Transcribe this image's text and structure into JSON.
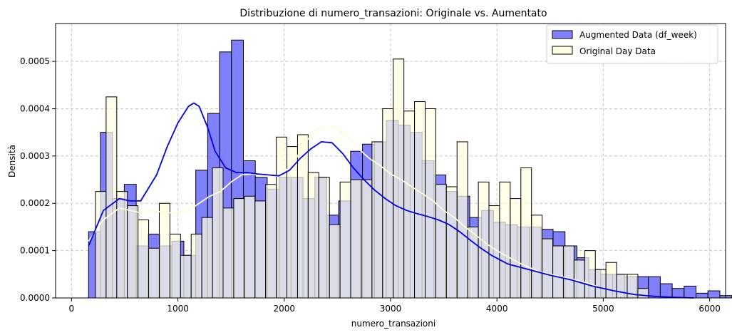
{
  "chart_data": {
    "type": "histogram",
    "title": "Distribuzione di numero_transazioni: Originale vs. Aumentato",
    "xlabel": "numero_transazioni",
    "ylabel": "Densità",
    "xlim": [
      -150,
      6150
    ],
    "ylim": [
      0,
      0.00058
    ],
    "xticks": [
      0,
      1000,
      2000,
      3000,
      4000,
      5000,
      6000
    ],
    "yticks": [
      0.0,
      0.0001,
      0.0002,
      0.0003,
      0.0004,
      0.0005
    ],
    "ytick_labels": [
      "0.0000",
      "0.0001",
      "0.0002",
      "0.0003",
      "0.0004",
      "0.0005"
    ],
    "grid": true,
    "legend_position": "top-right",
    "colors": {
      "augmented_fill": "#8080ff",
      "augmented_line": "#0000e6",
      "original_fill": "#fefee0",
      "original_line": "#fdfdd6",
      "overlap_fill": "#d4d4e8",
      "edge": "#000000",
      "grid": "#c8c8c8"
    },
    "series": [
      {
        "name": "Augmented Data (df_week)",
        "bin_start": 160,
        "bin_width": 112,
        "values": [
          0.00014,
          0.00035,
          0.00021,
          0.00024,
          0.00011,
          0.000135,
          0.00011,
          0.00012,
          9e-05,
          0.00027,
          0.00039,
          0.00052,
          0.000545,
          0.00029,
          0.000255,
          0.00023,
          0.000255,
          0.000255,
          0.00021,
          0.000255,
          0.000175,
          0.000205,
          0.00031,
          0.000325,
          0.00033,
          0.000375,
          0.000365,
          0.00035,
          0.00029,
          0.00026,
          0.000225,
          0.000215,
          0.00017,
          0.000185,
          0.00016,
          0.000155,
          0.00015,
          0.00015,
          0.000145,
          0.00014,
          0.00011,
          8.5e-05,
          6e-05,
          5e-05,
          5e-05,
          4.5e-05,
          4.5e-05,
          4.5e-05,
          3e-05,
          2e-05,
          2.5e-05,
          1e-05,
          1.5e-05,
          5e-06
        ],
        "kde_x": [
          160,
          300,
          450,
          550,
          650,
          800,
          900,
          1000,
          1100,
          1150,
          1200,
          1280,
          1350,
          1450,
          1550,
          1650,
          1750,
          1850,
          1950,
          2050,
          2150,
          2250,
          2350,
          2450,
          2550,
          2650,
          2750,
          2850,
          2950,
          3050,
          3150,
          3250,
          3350,
          3450,
          3550,
          3650,
          3750,
          3850,
          3950,
          4100,
          4300,
          4500,
          4700,
          4900,
          5100,
          5300,
          5500,
          5700,
          5850
        ],
        "kde_y": [
          0.00011,
          0.000185,
          0.00021,
          0.000205,
          0.000205,
          0.00026,
          0.00032,
          0.00037,
          0.000405,
          0.000412,
          0.000405,
          0.00036,
          0.00031,
          0.000275,
          0.000265,
          0.000265,
          0.000262,
          0.00026,
          0.000258,
          0.00027,
          0.000295,
          0.000315,
          0.00033,
          0.000328,
          0.000305,
          0.000275,
          0.00025,
          0.000228,
          0.00021,
          0.000195,
          0.000185,
          0.000178,
          0.000172,
          0.000165,
          0.000155,
          0.00014,
          0.000122,
          0.000105,
          9e-05,
          7.2e-05,
          6e-05,
          4.8e-05,
          3.8e-05,
          2.5e-05,
          1.5e-05,
          7e-06,
          3e-06,
          1e-06,
          0.0
        ]
      },
      {
        "name": "Original Day Data",
        "bin_start": 225,
        "bin_width": 100,
        "values": [
          0.000225,
          0.000425,
          0.000225,
          0.000195,
          0.000165,
          0.000105,
          0.0002,
          0.000135,
          9e-05,
          0.000135,
          0.00017,
          0.000275,
          0.00019,
          0.00021,
          0.000215,
          0.000205,
          0.00024,
          0.00034,
          0.00032,
          0.000345,
          0.000265,
          0.000255,
          0.000155,
          0.000245,
          0.00025,
          0.00025,
          0.00033,
          0.0004,
          0.000505,
          0.000395,
          0.000415,
          0.0004,
          0.00024,
          0.000235,
          0.00033,
          0.00015,
          0.000245,
          0.000195,
          0.000245,
          0.00021,
          0.000275,
          0.000175,
          0.000125,
          0.00011,
          0.00011,
          8e-05,
          0.0001,
          6e-05,
          7.5e-05,
          5e-05,
          5e-05,
          2e-05
        ],
        "kde_x": [
          160,
          300,
          450,
          550,
          650,
          750,
          900,
          1000,
          1100,
          1200,
          1300,
          1400,
          1500,
          1600,
          1700,
          1800,
          1900,
          2000,
          2100,
          2200,
          2300,
          2400,
          2500,
          2600,
          2700,
          2800,
          2900,
          3000,
          3100,
          3200,
          3300,
          3400,
          3500,
          3600,
          3700,
          3800,
          3900,
          4000,
          4200,
          4400,
          4600,
          4800,
          5000
        ],
        "kde_y": [
          0.00012,
          0.000165,
          0.00019,
          0.000185,
          0.00018,
          0.000185,
          0.00018,
          0.00018,
          0.000185,
          0.0002,
          0.000215,
          0.000225,
          0.000245,
          0.00026,
          0.000262,
          0.000258,
          0.000255,
          0.000265,
          0.00029,
          0.00033,
          0.000355,
          0.000362,
          0.000358,
          0.00034,
          0.000315,
          0.000295,
          0.00028,
          0.000262,
          0.00025,
          0.000235,
          0.00022,
          0.000205,
          0.000185,
          0.00017,
          0.00015,
          0.000133,
          0.000115,
          0.0001,
          7.5e-05,
          5.5e-05,
          4.5e-05,
          3.5e-05,
          2e-05
        ]
      }
    ]
  }
}
